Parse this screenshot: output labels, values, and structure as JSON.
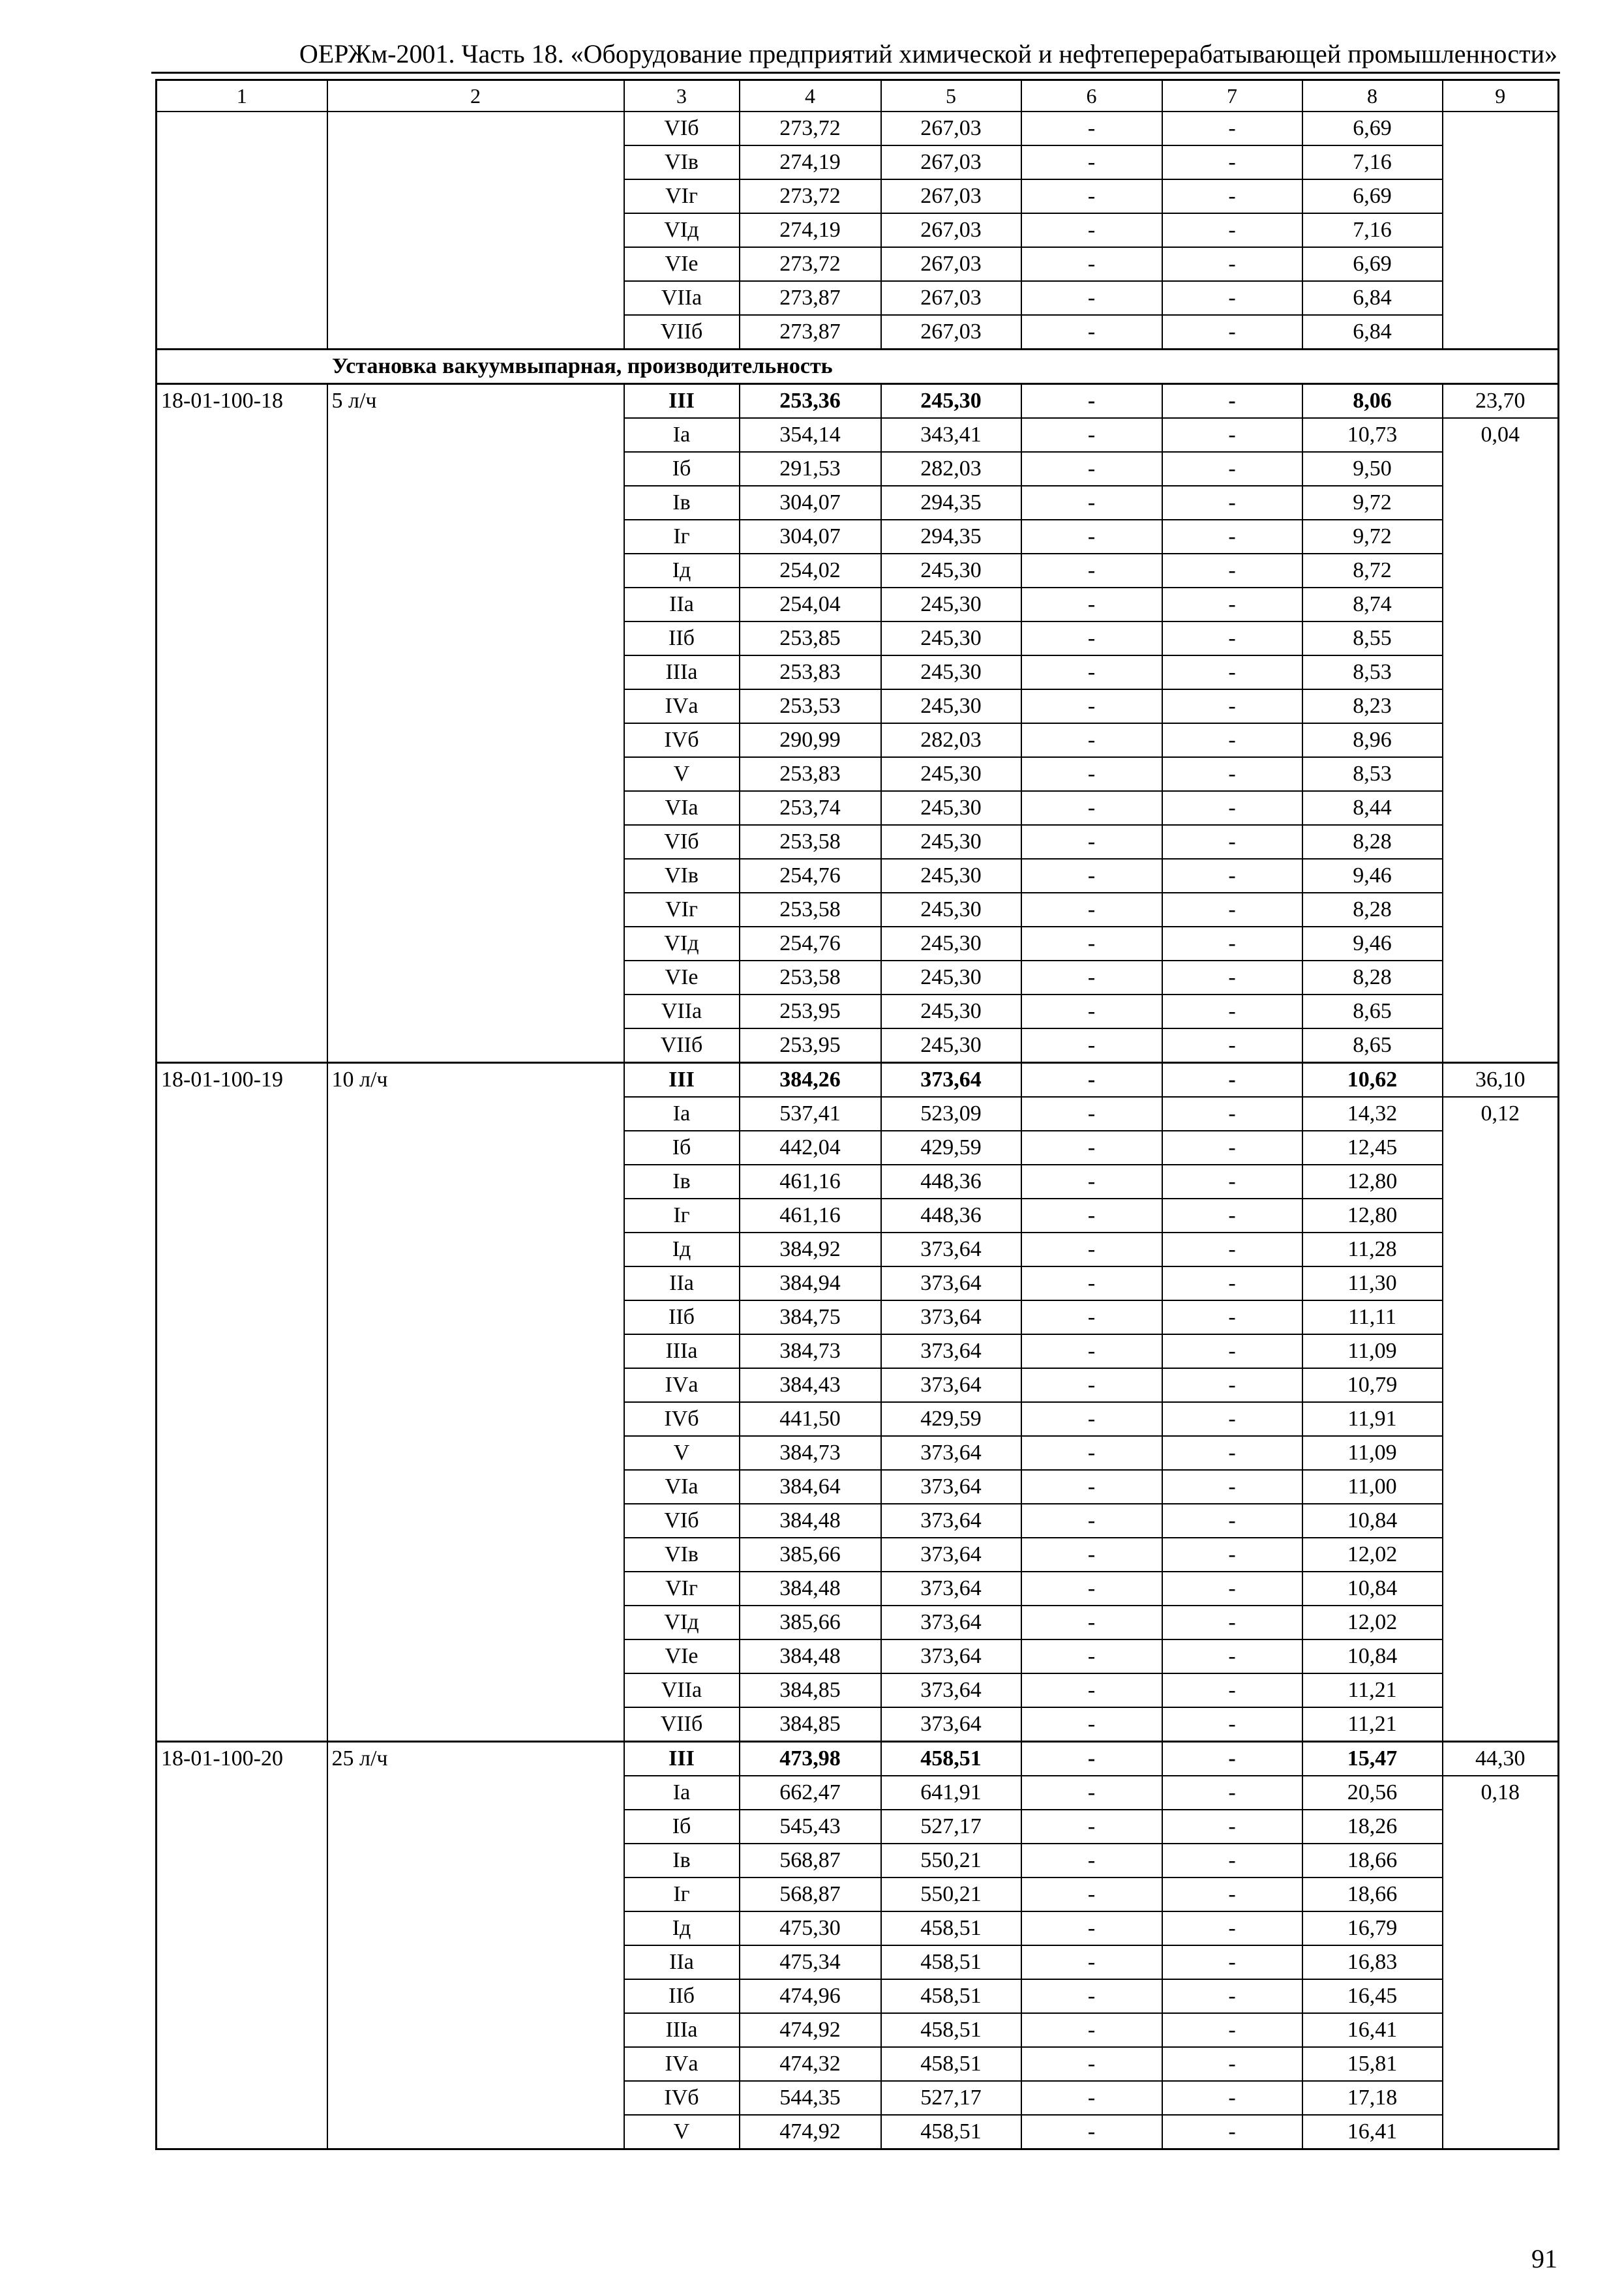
{
  "header": {
    "title": "ОЕРЖм-2001. Часть 18. «Оборудование предприятий химической и нефтеперерабатывающей промышленности»"
  },
  "table": {
    "column_numbers": [
      "1",
      "2",
      "3",
      "4",
      "5",
      "6",
      "7",
      "8",
      "9"
    ],
    "continuation": {
      "rows": [
        [
          "VIб",
          "273,72",
          "267,03",
          "-",
          "-",
          "6,69"
        ],
        [
          "VIв",
          "274,19",
          "267,03",
          "-",
          "-",
          "7,16"
        ],
        [
          "VIг",
          "273,72",
          "267,03",
          "-",
          "-",
          "6,69"
        ],
        [
          "VIд",
          "274,19",
          "267,03",
          "-",
          "-",
          "7,16"
        ],
        [
          "VIе",
          "273,72",
          "267,03",
          "-",
          "-",
          "6,69"
        ],
        [
          "VIIа",
          "273,87",
          "267,03",
          "-",
          "-",
          "6,84"
        ],
        [
          "VIIб",
          "273,87",
          "267,03",
          "-",
          "-",
          "6,84"
        ]
      ]
    },
    "section_title": "Установка вакуумвыпарная, производительность",
    "groups": [
      {
        "code": "18-01-100-18",
        "capacity": "5 л/ч",
        "col9_main": "23,70",
        "col9_secondary": "0,04",
        "rows": [
          [
            "III",
            "253,36",
            "245,30",
            "-",
            "-",
            "8,06"
          ],
          [
            "Iа",
            "354,14",
            "343,41",
            "-",
            "-",
            "10,73"
          ],
          [
            "Iб",
            "291,53",
            "282,03",
            "-",
            "-",
            "9,50"
          ],
          [
            "Iв",
            "304,07",
            "294,35",
            "-",
            "-",
            "9,72"
          ],
          [
            "Iг",
            "304,07",
            "294,35",
            "-",
            "-",
            "9,72"
          ],
          [
            "Iд",
            "254,02",
            "245,30",
            "-",
            "-",
            "8,72"
          ],
          [
            "IIа",
            "254,04",
            "245,30",
            "-",
            "-",
            "8,74"
          ],
          [
            "IIб",
            "253,85",
            "245,30",
            "-",
            "-",
            "8,55"
          ],
          [
            "IIIа",
            "253,83",
            "245,30",
            "-",
            "-",
            "8,53"
          ],
          [
            "IVа",
            "253,53",
            "245,30",
            "-",
            "-",
            "8,23"
          ],
          [
            "IVб",
            "290,99",
            "282,03",
            "-",
            "-",
            "8,96"
          ],
          [
            "V",
            "253,83",
            "245,30",
            "-",
            "-",
            "8,53"
          ],
          [
            "VIа",
            "253,74",
            "245,30",
            "-",
            "-",
            "8,44"
          ],
          [
            "VIб",
            "253,58",
            "245,30",
            "-",
            "-",
            "8,28"
          ],
          [
            "VIв",
            "254,76",
            "245,30",
            "-",
            "-",
            "9,46"
          ],
          [
            "VIг",
            "253,58",
            "245,30",
            "-",
            "-",
            "8,28"
          ],
          [
            "VIд",
            "254,76",
            "245,30",
            "-",
            "-",
            "9,46"
          ],
          [
            "VIе",
            "253,58",
            "245,30",
            "-",
            "-",
            "8,28"
          ],
          [
            "VIIа",
            "253,95",
            "245,30",
            "-",
            "-",
            "8,65"
          ],
          [
            "VIIб",
            "253,95",
            "245,30",
            "-",
            "-",
            "8,65"
          ]
        ]
      },
      {
        "code": "18-01-100-19",
        "capacity": "10 л/ч",
        "col9_main": "36,10",
        "col9_secondary": "0,12",
        "rows": [
          [
            "III",
            "384,26",
            "373,64",
            "-",
            "-",
            "10,62"
          ],
          [
            "Iа",
            "537,41",
            "523,09",
            "-",
            "-",
            "14,32"
          ],
          [
            "Iб",
            "442,04",
            "429,59",
            "-",
            "-",
            "12,45"
          ],
          [
            "Iв",
            "461,16",
            "448,36",
            "-",
            "-",
            "12,80"
          ],
          [
            "Iг",
            "461,16",
            "448,36",
            "-",
            "-",
            "12,80"
          ],
          [
            "Iд",
            "384,92",
            "373,64",
            "-",
            "-",
            "11,28"
          ],
          [
            "IIа",
            "384,94",
            "373,64",
            "-",
            "-",
            "11,30"
          ],
          [
            "IIб",
            "384,75",
            "373,64",
            "-",
            "-",
            "11,11"
          ],
          [
            "IIIа",
            "384,73",
            "373,64",
            "-",
            "-",
            "11,09"
          ],
          [
            "IVа",
            "384,43",
            "373,64",
            "-",
            "-",
            "10,79"
          ],
          [
            "IVб",
            "441,50",
            "429,59",
            "-",
            "-",
            "11,91"
          ],
          [
            "V",
            "384,73",
            "373,64",
            "-",
            "-",
            "11,09"
          ],
          [
            "VIа",
            "384,64",
            "373,64",
            "-",
            "-",
            "11,00"
          ],
          [
            "VIб",
            "384,48",
            "373,64",
            "-",
            "-",
            "10,84"
          ],
          [
            "VIв",
            "385,66",
            "373,64",
            "-",
            "-",
            "12,02"
          ],
          [
            "VIг",
            "384,48",
            "373,64",
            "-",
            "-",
            "10,84"
          ],
          [
            "VIд",
            "385,66",
            "373,64",
            "-",
            "-",
            "12,02"
          ],
          [
            "VIе",
            "384,48",
            "373,64",
            "-",
            "-",
            "10,84"
          ],
          [
            "VIIа",
            "384,85",
            "373,64",
            "-",
            "-",
            "11,21"
          ],
          [
            "VIIб",
            "384,85",
            "373,64",
            "-",
            "-",
            "11,21"
          ]
        ]
      },
      {
        "code": "18-01-100-20",
        "capacity": "25 л/ч",
        "col9_main": "44,30",
        "col9_secondary": "0,18",
        "rows": [
          [
            "III",
            "473,98",
            "458,51",
            "-",
            "-",
            "15,47"
          ],
          [
            "Iа",
            "662,47",
            "641,91",
            "-",
            "-",
            "20,56"
          ],
          [
            "Iб",
            "545,43",
            "527,17",
            "-",
            "-",
            "18,26"
          ],
          [
            "Iв",
            "568,87",
            "550,21",
            "-",
            "-",
            "18,66"
          ],
          [
            "Iг",
            "568,87",
            "550,21",
            "-",
            "-",
            "18,66"
          ],
          [
            "Iд",
            "475,30",
            "458,51",
            "-",
            "-",
            "16,79"
          ],
          [
            "IIа",
            "475,34",
            "458,51",
            "-",
            "-",
            "16,83"
          ],
          [
            "IIб",
            "474,96",
            "458,51",
            "-",
            "-",
            "16,45"
          ],
          [
            "IIIа",
            "474,92",
            "458,51",
            "-",
            "-",
            "16,41"
          ],
          [
            "IVа",
            "474,32",
            "458,51",
            "-",
            "-",
            "15,81"
          ],
          [
            "IVб",
            "544,35",
            "527,17",
            "-",
            "-",
            "17,18"
          ],
          [
            "V",
            "474,92",
            "458,51",
            "-",
            "-",
            "16,41"
          ]
        ]
      }
    ]
  },
  "footer": {
    "page_number": "91"
  }
}
